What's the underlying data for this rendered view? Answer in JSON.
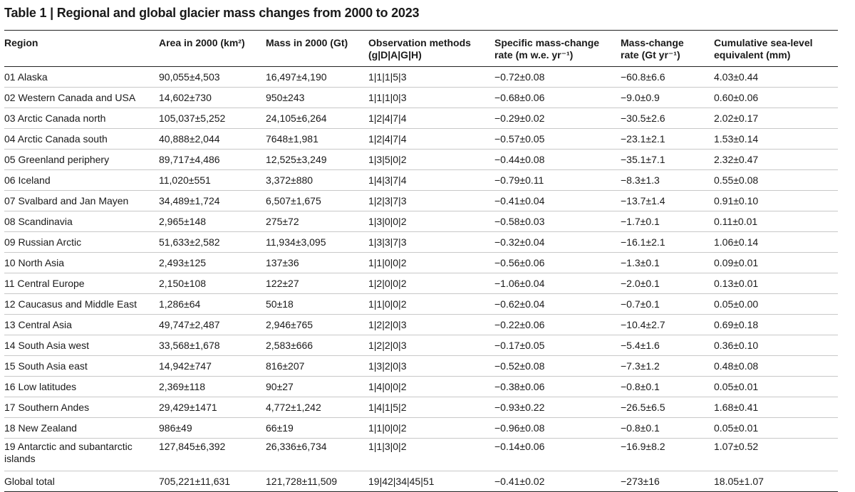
{
  "title": "Table 1 | Regional and global glacier mass changes from 2000 to 2023",
  "headers": {
    "region": "Region",
    "area": "Area in 2000 (km²)",
    "mass": "Mass in 2000 (Gt)",
    "obs_line1": "Observation methods",
    "obs_line2": "(g|D|A|G|H)",
    "spec_line1": "Specific mass-change",
    "spec_line2": "rate (m w.e. yr⁻¹)",
    "rate_line1": "Mass-change",
    "rate_line2": "rate (Gt yr⁻¹)",
    "sle_line1": "Cumulative sea-level",
    "sle_line2": "equivalent (mm)"
  },
  "rows": [
    {
      "region": "01 Alaska",
      "area": "90,055±4,503",
      "mass": "16,497±4,190",
      "obs": "1|1|1|5|3",
      "spec": "−0.72±0.08",
      "rate": "−60.8±6.6",
      "sle": "4.03±0.44"
    },
    {
      "region": "02 Western Canada and USA",
      "area": "14,602±730",
      "mass": "950±243",
      "obs": "1|1|1|0|3",
      "spec": "−0.68±0.06",
      "rate": "−9.0±0.9",
      "sle": "0.60±0.06"
    },
    {
      "region": "03 Arctic Canada north",
      "area": "105,037±5,252",
      "mass": "24,105±6,264",
      "obs": "1|2|4|7|4",
      "spec": "−0.29±0.02",
      "rate": "−30.5±2.6",
      "sle": "2.02±0.17"
    },
    {
      "region": "04 Arctic Canada south",
      "area": "40,888±2,044",
      "mass": "7648±1,981",
      "obs": "1|2|4|7|4",
      "spec": "−0.57±0.05",
      "rate": "−23.1±2.1",
      "sle": "1.53±0.14"
    },
    {
      "region": "05 Greenland periphery",
      "area": "89,717±4,486",
      "mass": "12,525±3,249",
      "obs": "1|3|5|0|2",
      "spec": "−0.44±0.08",
      "rate": "−35.1±7.1",
      "sle": "2.32±0.47"
    },
    {
      "region": "06 Iceland",
      "area": "11,020±551",
      "mass": "3,372±880",
      "obs": "1|4|3|7|4",
      "spec": "−0.79±0.11",
      "rate": "−8.3±1.3",
      "sle": "0.55±0.08"
    },
    {
      "region": "07 Svalbard and Jan Mayen",
      "area": "34,489±1,724",
      "mass": "6,507±1,675",
      "obs": "1|2|3|7|3",
      "spec": "−0.41±0.04",
      "rate": "−13.7±1.4",
      "sle": "0.91±0.10"
    },
    {
      "region": "08 Scandinavia",
      "area": "2,965±148",
      "mass": "275±72",
      "obs": "1|3|0|0|2",
      "spec": "−0.58±0.03",
      "rate": "−1.7±0.1",
      "sle": "0.11±0.01"
    },
    {
      "region": "09 Russian Arctic",
      "area": "51,633±2,582",
      "mass": "11,934±3,095",
      "obs": "1|3|3|7|3",
      "spec": "−0.32±0.04",
      "rate": "−16.1±2.1",
      "sle": "1.06±0.14"
    },
    {
      "region": "10 North Asia",
      "area": "2,493±125",
      "mass": "137±36",
      "obs": "1|1|0|0|2",
      "spec": "−0.56±0.06",
      "rate": "−1.3±0.1",
      "sle": "0.09±0.01"
    },
    {
      "region": "11 Central Europe",
      "area": "2,150±108",
      "mass": "122±27",
      "obs": "1|2|0|0|2",
      "spec": "−1.06±0.04",
      "rate": "−2.0±0.1",
      "sle": "0.13±0.01"
    },
    {
      "region": "12 Caucasus and Middle East",
      "area": "1,286±64",
      "mass": "50±18",
      "obs": "1|1|0|0|2",
      "spec": "−0.62±0.04",
      "rate": "−0.7±0.1",
      "sle": "0.05±0.00"
    },
    {
      "region": "13 Central Asia",
      "area": "49,747±2,487",
      "mass": "2,946±765",
      "obs": "1|2|2|0|3",
      "spec": "−0.22±0.06",
      "rate": "−10.4±2.7",
      "sle": "0.69±0.18"
    },
    {
      "region": "14 South Asia west",
      "area": "33,568±1,678",
      "mass": "2,583±666",
      "obs": "1|2|2|0|3",
      "spec": "−0.17±0.05",
      "rate": "−5.4±1.6",
      "sle": "0.36±0.10"
    },
    {
      "region": "15 South Asia east",
      "area": "14,942±747",
      "mass": "816±207",
      "obs": "1|3|2|0|3",
      "spec": "−0.52±0.08",
      "rate": "−7.3±1.2",
      "sle": "0.48±0.08"
    },
    {
      "region": "16 Low latitudes",
      "area": "2,369±118",
      "mass": "90±27",
      "obs": "1|4|0|0|2",
      "spec": "−0.38±0.06",
      "rate": "−0.8±0.1",
      "sle": "0.05±0.01"
    },
    {
      "region": "17 Southern Andes",
      "area": "29,429±1471",
      "mass": "4,772±1,242",
      "obs": "1|4|1|5|2",
      "spec": "−0.93±0.22",
      "rate": "−26.5±6.5",
      "sle": "1.68±0.41"
    },
    {
      "region": "18 New Zealand",
      "area": "986±49",
      "mass": "66±19",
      "obs": "1|1|0|0|2",
      "spec": "−0.96±0.08",
      "rate": "−0.8±0.1",
      "sle": "0.05±0.01"
    },
    {
      "region": "19 Antarctic and subantarctic islands",
      "area": "127,845±6,392",
      "mass": "26,336±6,734",
      "obs": "1|1|3|0|2",
      "spec": "−0.14±0.06",
      "rate": "−16.9±8.2",
      "sle": "1.07±0.52"
    },
    {
      "region": "Global total",
      "area": "705,221±11,631",
      "mass": "121,728±11,509",
      "obs": "19|42|34|45|51",
      "spec": "−0.41±0.02",
      "rate": "−273±16",
      "sle": "18.05±1.07"
    }
  ]
}
